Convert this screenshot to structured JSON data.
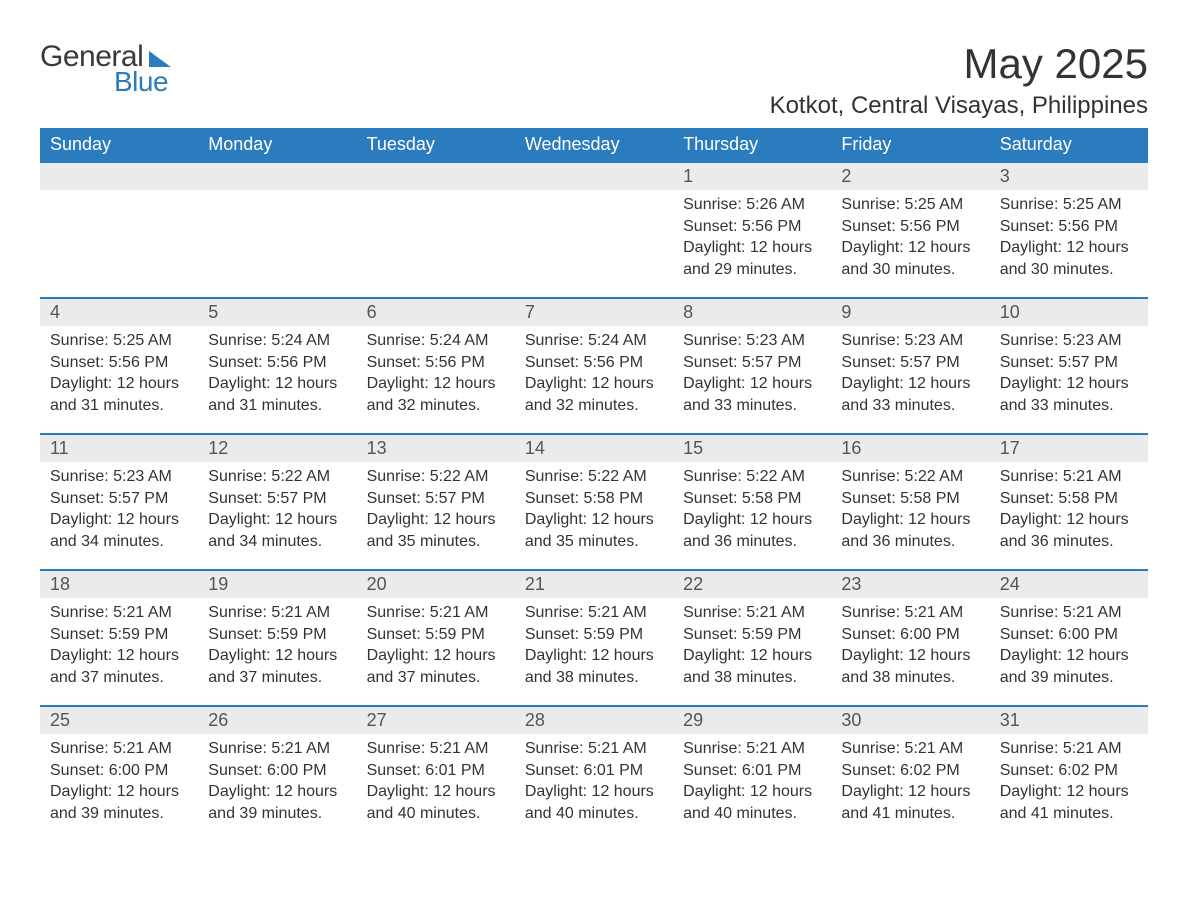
{
  "logo": {
    "text1": "General",
    "text2": "Blue"
  },
  "title": "May 2025",
  "location": "Kotkot, Central Visayas, Philippines",
  "colors": {
    "header_bg": "#2b7bbf",
    "header_text": "#ffffff",
    "daynum_bg": "#ebebeb",
    "page_bg": "#ffffff",
    "text": "#333333",
    "row_border": "#2b7bbf"
  },
  "fonts": {
    "title_size_pt": 32,
    "location_size_pt": 18,
    "header_size_pt": 14,
    "daynum_size_pt": 14,
    "body_size_pt": 12
  },
  "layout": {
    "columns": 7,
    "rows": 5,
    "week_start": "Sunday"
  },
  "day_headers": [
    "Sunday",
    "Monday",
    "Tuesday",
    "Wednesday",
    "Thursday",
    "Friday",
    "Saturday"
  ],
  "weeks": [
    [
      {
        "day": "",
        "sunrise": "",
        "sunset": "",
        "daylight": ""
      },
      {
        "day": "",
        "sunrise": "",
        "sunset": "",
        "daylight": ""
      },
      {
        "day": "",
        "sunrise": "",
        "sunset": "",
        "daylight": ""
      },
      {
        "day": "",
        "sunrise": "",
        "sunset": "",
        "daylight": ""
      },
      {
        "day": "1",
        "sunrise": "Sunrise: 5:26 AM",
        "sunset": "Sunset: 5:56 PM",
        "daylight": "Daylight: 12 hours and 29 minutes."
      },
      {
        "day": "2",
        "sunrise": "Sunrise: 5:25 AM",
        "sunset": "Sunset: 5:56 PM",
        "daylight": "Daylight: 12 hours and 30 minutes."
      },
      {
        "day": "3",
        "sunrise": "Sunrise: 5:25 AM",
        "sunset": "Sunset: 5:56 PM",
        "daylight": "Daylight: 12 hours and 30 minutes."
      }
    ],
    [
      {
        "day": "4",
        "sunrise": "Sunrise: 5:25 AM",
        "sunset": "Sunset: 5:56 PM",
        "daylight": "Daylight: 12 hours and 31 minutes."
      },
      {
        "day": "5",
        "sunrise": "Sunrise: 5:24 AM",
        "sunset": "Sunset: 5:56 PM",
        "daylight": "Daylight: 12 hours and 31 minutes."
      },
      {
        "day": "6",
        "sunrise": "Sunrise: 5:24 AM",
        "sunset": "Sunset: 5:56 PM",
        "daylight": "Daylight: 12 hours and 32 minutes."
      },
      {
        "day": "7",
        "sunrise": "Sunrise: 5:24 AM",
        "sunset": "Sunset: 5:56 PM",
        "daylight": "Daylight: 12 hours and 32 minutes."
      },
      {
        "day": "8",
        "sunrise": "Sunrise: 5:23 AM",
        "sunset": "Sunset: 5:57 PM",
        "daylight": "Daylight: 12 hours and 33 minutes."
      },
      {
        "day": "9",
        "sunrise": "Sunrise: 5:23 AM",
        "sunset": "Sunset: 5:57 PM",
        "daylight": "Daylight: 12 hours and 33 minutes."
      },
      {
        "day": "10",
        "sunrise": "Sunrise: 5:23 AM",
        "sunset": "Sunset: 5:57 PM",
        "daylight": "Daylight: 12 hours and 33 minutes."
      }
    ],
    [
      {
        "day": "11",
        "sunrise": "Sunrise: 5:23 AM",
        "sunset": "Sunset: 5:57 PM",
        "daylight": "Daylight: 12 hours and 34 minutes."
      },
      {
        "day": "12",
        "sunrise": "Sunrise: 5:22 AM",
        "sunset": "Sunset: 5:57 PM",
        "daylight": "Daylight: 12 hours and 34 minutes."
      },
      {
        "day": "13",
        "sunrise": "Sunrise: 5:22 AM",
        "sunset": "Sunset: 5:57 PM",
        "daylight": "Daylight: 12 hours and 35 minutes."
      },
      {
        "day": "14",
        "sunrise": "Sunrise: 5:22 AM",
        "sunset": "Sunset: 5:58 PM",
        "daylight": "Daylight: 12 hours and 35 minutes."
      },
      {
        "day": "15",
        "sunrise": "Sunrise: 5:22 AM",
        "sunset": "Sunset: 5:58 PM",
        "daylight": "Daylight: 12 hours and 36 minutes."
      },
      {
        "day": "16",
        "sunrise": "Sunrise: 5:22 AM",
        "sunset": "Sunset: 5:58 PM",
        "daylight": "Daylight: 12 hours and 36 minutes."
      },
      {
        "day": "17",
        "sunrise": "Sunrise: 5:21 AM",
        "sunset": "Sunset: 5:58 PM",
        "daylight": "Daylight: 12 hours and 36 minutes."
      }
    ],
    [
      {
        "day": "18",
        "sunrise": "Sunrise: 5:21 AM",
        "sunset": "Sunset: 5:59 PM",
        "daylight": "Daylight: 12 hours and 37 minutes."
      },
      {
        "day": "19",
        "sunrise": "Sunrise: 5:21 AM",
        "sunset": "Sunset: 5:59 PM",
        "daylight": "Daylight: 12 hours and 37 minutes."
      },
      {
        "day": "20",
        "sunrise": "Sunrise: 5:21 AM",
        "sunset": "Sunset: 5:59 PM",
        "daylight": "Daylight: 12 hours and 37 minutes."
      },
      {
        "day": "21",
        "sunrise": "Sunrise: 5:21 AM",
        "sunset": "Sunset: 5:59 PM",
        "daylight": "Daylight: 12 hours and 38 minutes."
      },
      {
        "day": "22",
        "sunrise": "Sunrise: 5:21 AM",
        "sunset": "Sunset: 5:59 PM",
        "daylight": "Daylight: 12 hours and 38 minutes."
      },
      {
        "day": "23",
        "sunrise": "Sunrise: 5:21 AM",
        "sunset": "Sunset: 6:00 PM",
        "daylight": "Daylight: 12 hours and 38 minutes."
      },
      {
        "day": "24",
        "sunrise": "Sunrise: 5:21 AM",
        "sunset": "Sunset: 6:00 PM",
        "daylight": "Daylight: 12 hours and 39 minutes."
      }
    ],
    [
      {
        "day": "25",
        "sunrise": "Sunrise: 5:21 AM",
        "sunset": "Sunset: 6:00 PM",
        "daylight": "Daylight: 12 hours and 39 minutes."
      },
      {
        "day": "26",
        "sunrise": "Sunrise: 5:21 AM",
        "sunset": "Sunset: 6:00 PM",
        "daylight": "Daylight: 12 hours and 39 minutes."
      },
      {
        "day": "27",
        "sunrise": "Sunrise: 5:21 AM",
        "sunset": "Sunset: 6:01 PM",
        "daylight": "Daylight: 12 hours and 40 minutes."
      },
      {
        "day": "28",
        "sunrise": "Sunrise: 5:21 AM",
        "sunset": "Sunset: 6:01 PM",
        "daylight": "Daylight: 12 hours and 40 minutes."
      },
      {
        "day": "29",
        "sunrise": "Sunrise: 5:21 AM",
        "sunset": "Sunset: 6:01 PM",
        "daylight": "Daylight: 12 hours and 40 minutes."
      },
      {
        "day": "30",
        "sunrise": "Sunrise: 5:21 AM",
        "sunset": "Sunset: 6:02 PM",
        "daylight": "Daylight: 12 hours and 41 minutes."
      },
      {
        "day": "31",
        "sunrise": "Sunrise: 5:21 AM",
        "sunset": "Sunset: 6:02 PM",
        "daylight": "Daylight: 12 hours and 41 minutes."
      }
    ]
  ]
}
